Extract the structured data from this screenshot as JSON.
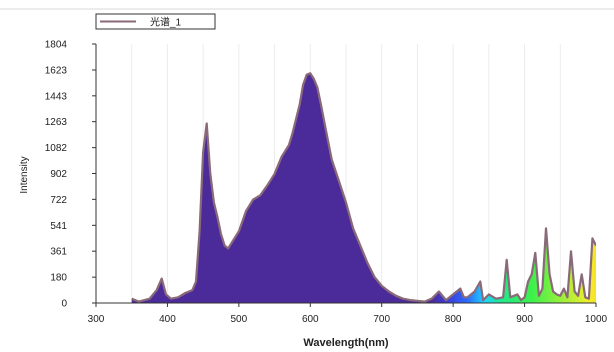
{
  "chart_data": {
    "type": "area",
    "title": "",
    "xlabel": "Wavelength(nm)",
    "ylabel": "Intensity",
    "xlim": [
      300,
      1000
    ],
    "ylim": [
      0,
      1804
    ],
    "x_ticks": [
      "300",
      "400",
      "500",
      "600",
      "700",
      "800",
      "900",
      "1000"
    ],
    "y_ticks": [
      "0",
      "180",
      "361",
      "541",
      "722",
      "902",
      "1082",
      "1263",
      "1443",
      "1623",
      "1804"
    ],
    "legend": {
      "label": "光谱_1",
      "placement": "top-left"
    },
    "fill": "visible-spectrum rainbow under the curve",
    "line_color": "#8a6a78",
    "series": [
      {
        "name": "光谱_1",
        "x": [
          350,
          360,
          375,
          385,
          392,
          398,
          405,
          415,
          425,
          435,
          440,
          445,
          450,
          455,
          460,
          465,
          470,
          475,
          480,
          485,
          490,
          500,
          510,
          520,
          530,
          540,
          550,
          560,
          570,
          575,
          580,
          585,
          590,
          595,
          600,
          605,
          610,
          615,
          620,
          630,
          640,
          650,
          660,
          670,
          680,
          690,
          700,
          710,
          720,
          730,
          740,
          750,
          760,
          770,
          780,
          790,
          800,
          810,
          815,
          820,
          830,
          838,
          842,
          850,
          860,
          870,
          875,
          880,
          890,
          895,
          900,
          905,
          910,
          915,
          920,
          925,
          930,
          935,
          940,
          945,
          950,
          955,
          960,
          965,
          970,
          975,
          980,
          985,
          990,
          995,
          1000
        ],
        "y": [
          30,
          10,
          30,
          90,
          170,
          60,
          30,
          40,
          70,
          90,
          150,
          500,
          1050,
          1250,
          900,
          700,
          600,
          480,
          400,
          380,
          420,
          500,
          640,
          720,
          750,
          820,
          900,
          1020,
          1100,
          1180,
          1280,
          1380,
          1520,
          1590,
          1600,
          1560,
          1500,
          1380,
          1250,
          1000,
          850,
          700,
          520,
          400,
          280,
          180,
          120,
          80,
          50,
          30,
          20,
          15,
          10,
          30,
          80,
          20,
          60,
          100,
          40,
          40,
          80,
          150,
          20,
          60,
          30,
          40,
          300,
          40,
          60,
          20,
          40,
          150,
          200,
          350,
          50,
          100,
          520,
          200,
          80,
          60,
          50,
          100,
          40,
          360,
          80,
          50,
          200,
          40,
          30,
          450,
          400
        ]
      }
    ]
  }
}
